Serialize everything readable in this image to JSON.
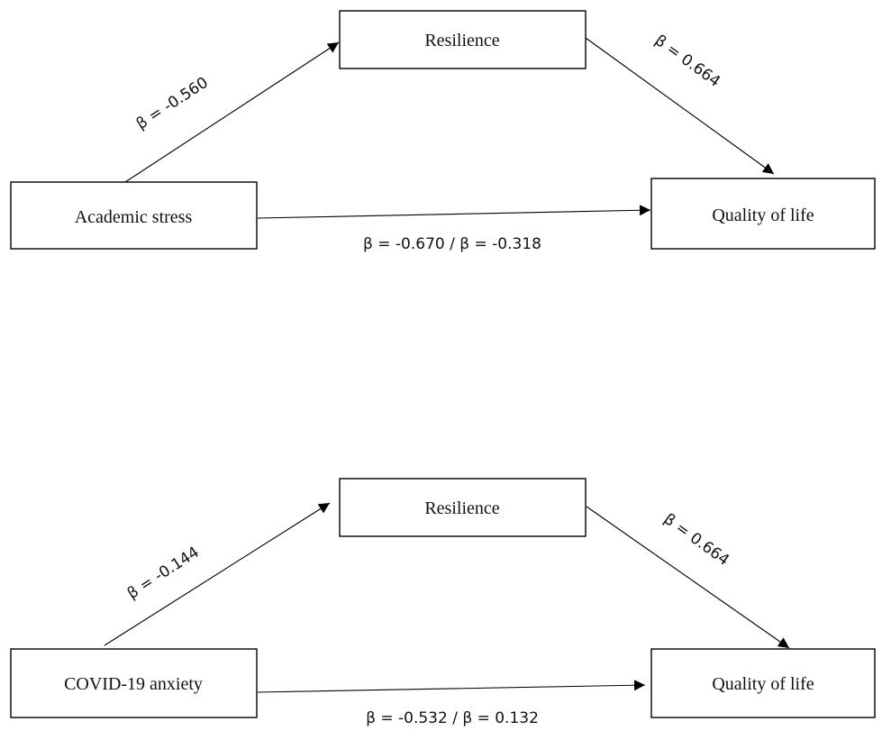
{
  "panels": [
    {
      "mediator": "Resilience",
      "predictor": "Academic stress",
      "outcome": "Quality of life",
      "path_a": "β = -0.560",
      "path_b": "β = 0.664",
      "path_c": "β = -0.670 / β = -0.318"
    },
    {
      "mediator": "Resilience",
      "predictor": "COVID-19 anxiety",
      "outcome": "Quality of life",
      "path_a": "β = -0.144",
      "path_b": "β = 0.664",
      "path_c": "β = -0.532 / β = 0.132"
    }
  ]
}
